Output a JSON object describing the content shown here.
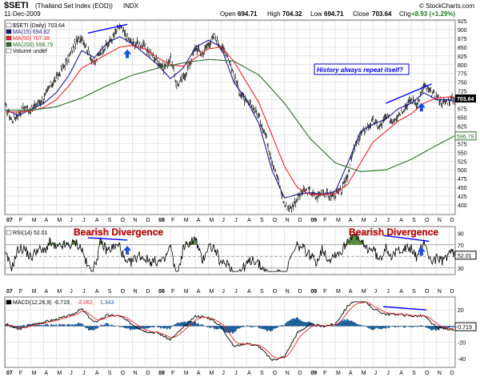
{
  "header": {
    "symbol": "$SETI",
    "name": "(Thailand Set Index (EOD))",
    "exchange": "INDX",
    "date": "11-Dec-2009",
    "brand": "© StockCharts.com",
    "quote": {
      "open_label": "Open",
      "open": "694.71",
      "high_label": "High",
      "high": "704.32",
      "low_label": "Low",
      "low": "694.71",
      "close_label": "Close",
      "close": "703.64",
      "chg_label": "Chg",
      "chg": "+8.93 (+1.29%)"
    }
  },
  "colors": {
    "price": "#000000",
    "ma15": "#1a1a8c",
    "ma50": "#e8262a",
    "ma200": "#2f6b2a",
    "trend_line": "#0000ff",
    "annotation_text": "#d01010",
    "arrow": "#1750d8",
    "macd_hist": "#1f5f9a",
    "grid": "#d4d4d4"
  },
  "chart_data": [
    {
      "type": "line",
      "panel": "price",
      "legend": [
        {
          "text": "$SETI (Daily) 703.64",
          "color": "#000000"
        },
        {
          "text": "MA(15) 694.82",
          "color": "#1a1a8c"
        },
        {
          "text": "MA(50) 707.38",
          "color": "#e8262a"
        },
        {
          "text": "MA(200) 596.79",
          "color": "#2f6b2a"
        },
        {
          "text": "Volume undef",
          "color": "#000000"
        }
      ],
      "ylim": [
        375,
        925
      ],
      "y_ticks": [
        400,
        425,
        450,
        475,
        500,
        525,
        550,
        575,
        600,
        625,
        650,
        675,
        700,
        725,
        750,
        775,
        800,
        825,
        850,
        875,
        900,
        925
      ],
      "x_months": [
        {
          "label": "07",
          "m": 0
        },
        {
          "label": "F",
          "m": 1
        },
        {
          "label": "M",
          "m": 2
        },
        {
          "label": "A",
          "m": 3
        },
        {
          "label": "M",
          "m": 4
        },
        {
          "label": "J",
          "m": 5
        },
        {
          "label": "J",
          "m": 6
        },
        {
          "label": "A",
          "m": 7
        },
        {
          "label": "S",
          "m": 8
        },
        {
          "label": "O",
          "m": 9
        },
        {
          "label": "N",
          "m": 10
        },
        {
          "label": "D",
          "m": 11
        },
        {
          "label": "08",
          "m": 12
        },
        {
          "label": "F",
          "m": 13
        },
        {
          "label": "M",
          "m": 14
        },
        {
          "label": "A",
          "m": 15
        },
        {
          "label": "M",
          "m": 16
        },
        {
          "label": "J",
          "m": 17
        },
        {
          "label": "J",
          "m": 18
        },
        {
          "label": "A",
          "m": 19
        },
        {
          "label": "S",
          "m": 20
        },
        {
          "label": "O",
          "m": 21
        },
        {
          "label": "N",
          "m": 22
        },
        {
          "label": "D",
          "m": 23
        },
        {
          "label": "09",
          "m": 24
        },
        {
          "label": "F",
          "m": 25
        },
        {
          "label": "M",
          "m": 26
        },
        {
          "label": "A",
          "m": 27
        },
        {
          "label": "M",
          "m": 28
        },
        {
          "label": "J",
          "m": 29
        },
        {
          "label": "J",
          "m": 30
        },
        {
          "label": "A",
          "m": 31
        },
        {
          "label": "S",
          "m": 32
        },
        {
          "label": "O",
          "m": 33
        },
        {
          "label": "N",
          "m": 34
        },
        {
          "label": "D",
          "m": 35
        }
      ],
      "x_range_months": [
        0,
        35.4
      ],
      "series": [
        {
          "key": "price",
          "color": "#000000",
          "m": [
            0,
            0.5,
            1,
            1.5,
            2,
            2.5,
            3,
            3.5,
            4,
            4.5,
            5,
            5.5,
            6,
            6.5,
            7,
            7.5,
            8,
            8.5,
            9,
            9.5,
            10,
            10.5,
            11,
            11.5,
            12,
            12.5,
            13,
            13.5,
            14,
            14.5,
            15,
            15.5,
            16,
            16.5,
            17,
            17.5,
            18,
            18.5,
            19,
            19.5,
            20,
            20.5,
            21,
            21.5,
            22,
            22.5,
            23,
            23.5,
            24,
            24.5,
            25,
            25.5,
            26,
            26.5,
            27,
            27.5,
            28,
            28.5,
            29,
            29.5,
            30,
            30.5,
            31,
            31.5,
            32,
            32.5,
            33,
            33.5,
            34,
            34.5,
            35,
            35.4
          ],
          "v": [
            680,
            640,
            660,
            680,
            670,
            690,
            700,
            740,
            760,
            790,
            820,
            860,
            880,
            840,
            800,
            840,
            855,
            880,
            910,
            880,
            860,
            860,
            850,
            830,
            810,
            790,
            820,
            740,
            760,
            800,
            850,
            830,
            860,
            880,
            850,
            830,
            770,
            720,
            690,
            680,
            650,
            600,
            530,
            470,
            400,
            390,
            420,
            440,
            440,
            420,
            440,
            425,
            430,
            440,
            490,
            560,
            600,
            620,
            640,
            620,
            650,
            640,
            660,
            680,
            700,
            690,
            740,
            720,
            710,
            690,
            700,
            703.64
          ]
        },
        {
          "key": "ma15",
          "color": "#1a1a8c",
          "m": [
            0,
            1,
            2,
            3,
            4,
            5,
            6,
            7,
            8,
            9,
            10,
            11,
            12,
            13,
            14,
            15,
            16,
            17,
            18,
            19,
            20,
            21,
            22,
            23,
            24,
            25,
            26,
            27,
            28,
            29,
            30,
            31,
            32,
            33,
            34,
            35,
            35.4
          ],
          "v": [
            672,
            655,
            672,
            690,
            720,
            770,
            840,
            820,
            862,
            880,
            860,
            830,
            800,
            760,
            790,
            850,
            870,
            850,
            750,
            700,
            630,
            500,
            420,
            430,
            435,
            430,
            438,
            520,
            610,
            630,
            645,
            675,
            690,
            720,
            700,
            700,
            694.82
          ]
        },
        {
          "key": "ma50",
          "color": "#e8262a",
          "m": [
            0,
            1,
            2,
            3,
            4,
            5,
            6,
            7,
            8,
            9,
            10,
            11,
            12,
            13,
            14,
            15,
            16,
            17,
            18,
            19,
            20,
            21,
            22,
            23,
            24,
            25,
            26,
            27,
            28,
            29,
            30,
            31,
            32,
            33,
            34,
            35,
            35.4
          ],
          "v": [
            665,
            665,
            668,
            678,
            700,
            740,
            790,
            810,
            830,
            850,
            855,
            845,
            820,
            800,
            795,
            820,
            845,
            850,
            810,
            750,
            690,
            600,
            510,
            450,
            430,
            430,
            432,
            460,
            520,
            580,
            610,
            640,
            660,
            690,
            705,
            708,
            707.38
          ]
        },
        {
          "key": "ma200",
          "color": "#2f6b2a",
          "m": [
            0,
            2,
            4,
            6,
            8,
            10,
            12,
            14,
            16,
            18,
            20,
            22,
            24,
            26,
            28,
            30,
            32,
            34,
            35.4
          ],
          "v": [
            670,
            670,
            680,
            705,
            740,
            770,
            790,
            805,
            815,
            810,
            770,
            690,
            590,
            520,
            495,
            500,
            530,
            570,
            596.79
          ]
        }
      ],
      "annotations": [
        {
          "type": "text_box",
          "text": "History always repeat itself?",
          "color": "#0000ff"
        },
        {
          "type": "trend_line",
          "m": [
            6.5,
            9.6
          ],
          "v": [
            890,
            915
          ],
          "color": "#0000ff"
        },
        {
          "type": "trend_line",
          "m": [
            30,
            33.6
          ],
          "v": [
            690,
            745
          ],
          "color": "#0000ff"
        },
        {
          "type": "arrow",
          "m": 9.6,
          "v": 830,
          "direction": "up",
          "color": "#1750d8"
        },
        {
          "type": "arrow",
          "m": 32.8,
          "v": 678,
          "direction": "up",
          "color": "#1750d8"
        }
      ]
    },
    {
      "type": "line",
      "panel": "rsi",
      "legend": [
        {
          "text": "RSI(14) 52.01",
          "color": "#000000"
        }
      ],
      "ylim": [
        20,
        100
      ],
      "y_ticks": [
        30,
        50,
        70,
        90
      ],
      "reference_lines": [
        30,
        50,
        70
      ],
      "last_value": 52.01,
      "annotations": [
        {
          "type": "text",
          "text": "Bearish Divergence",
          "color": "#d01010"
        },
        {
          "type": "text",
          "text": "Bearish Divergence",
          "color": "#d01010"
        },
        {
          "type": "trend_line",
          "m": [
            6.5,
            9.6
          ],
          "v": [
            82,
            78
          ],
          "color": "#0000ff"
        },
        {
          "type": "trend_line",
          "m": [
            29.8,
            33.4
          ],
          "v": [
            86,
            76
          ],
          "color": "#0000ff"
        },
        {
          "type": "arrow",
          "m": 9.6,
          "v": 60,
          "direction": "up",
          "color": "#1750d8"
        },
        {
          "type": "arrow",
          "m": 32.8,
          "v": 58,
          "direction": "up",
          "color": "#1750d8"
        }
      ]
    },
    {
      "type": "line",
      "panel": "macd",
      "legend": [
        {
          "text": "MACD(12,26,9)",
          "color": "#000000"
        },
        {
          "text": "-0.719,",
          "color": "#000000"
        },
        {
          "text": "-2.062,",
          "color": "#e8262a"
        },
        {
          "text": "1.343",
          "color": "#1f5f9a"
        }
      ],
      "ylim": [
        -50,
        35
      ],
      "y_ticks": [
        -40,
        -20,
        0,
        20
      ],
      "last_value": -0.719,
      "annotations": [
        {
          "type": "trend_line",
          "m": [
            29.8,
            33.2
          ],
          "v": [
            24,
            20
          ],
          "color": "#0000ff"
        }
      ]
    }
  ]
}
